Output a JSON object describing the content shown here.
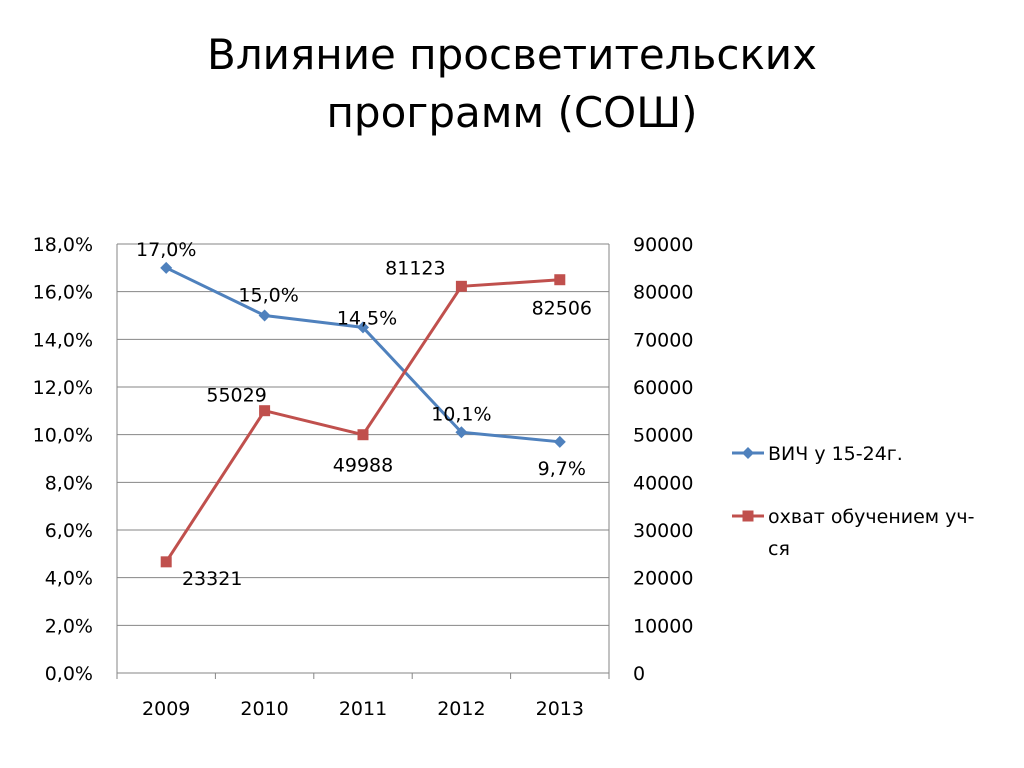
{
  "slide": {
    "title_line1": "Влияние просветительских",
    "title_line2": "программ (СОШ)"
  },
  "chart_data": {
    "type": "line",
    "categories": [
      "2009",
      "2010",
      "2011",
      "2012",
      "2013"
    ],
    "y_left": {
      "min": 0,
      "max": 18,
      "step": 2,
      "ticks": [
        "0,0%",
        "2,0%",
        "4,0%",
        "6,0%",
        "8,0%",
        "10,0%",
        "12,0%",
        "14,0%",
        "16,0%",
        "18,0%"
      ]
    },
    "y_right": {
      "min": 0,
      "max": 90000,
      "step": 10000,
      "ticks": [
        "0",
        "10000",
        "20000",
        "30000",
        "40000",
        "50000",
        "60000",
        "70000",
        "80000",
        "90000"
      ]
    },
    "series": [
      {
        "name": "ВИЧ у 15-24г.",
        "axis": "left",
        "color": "#4F81BD",
        "marker": "diamond",
        "values": [
          17.0,
          15.0,
          14.5,
          10.1,
          9.7
        ],
        "labels": [
          "17,0%",
          "15,0%",
          "14,5%",
          "10,1%",
          "9,7%"
        ]
      },
      {
        "name": "охват обучением уч-ся",
        "legend_lines": [
          "охват обучением уч-",
          "ся"
        ],
        "axis": "right",
        "color": "#C0504D",
        "marker": "square",
        "values": [
          23321,
          55029,
          49988,
          81123,
          82506
        ],
        "labels": [
          "23321",
          "55029",
          "49988",
          "81123",
          "82506"
        ]
      }
    ],
    "grid": "horizontal",
    "legend": "right"
  }
}
